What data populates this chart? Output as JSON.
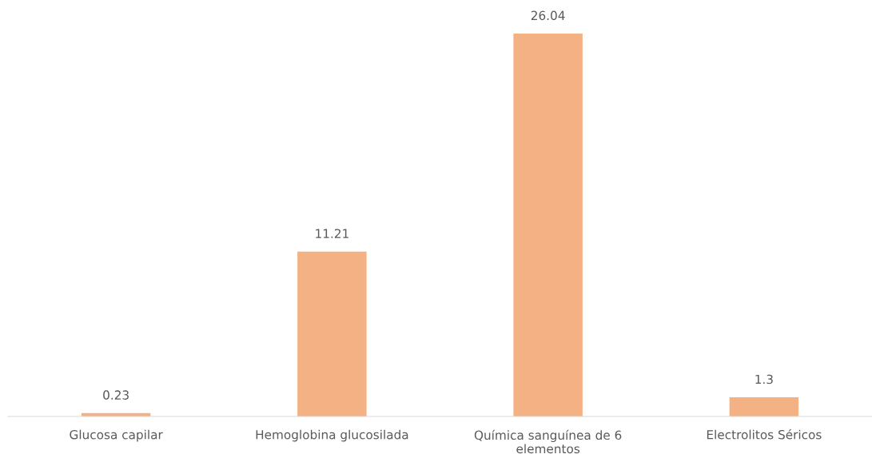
{
  "chart_data": {
    "type": "bar",
    "categories": [
      "Glucosa capilar",
      "Hemoglobina glucosilada",
      "Química sanguínea de 6 elementos",
      "Electrolitos Séricos"
    ],
    "values": [
      0.23,
      11.21,
      26.04,
      1.3
    ],
    "color": "#f4b183",
    "data_labels": true,
    "grid": false,
    "legend": false
  }
}
